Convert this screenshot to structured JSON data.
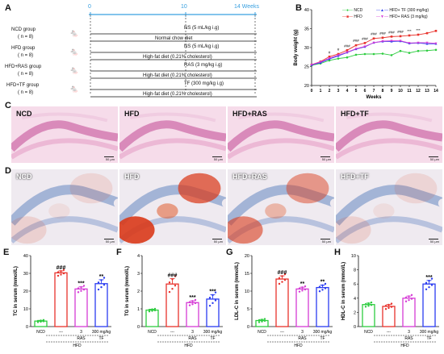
{
  "panels": {
    "A": "A",
    "B": "B",
    "C": "C",
    "D": "D",
    "E": "E",
    "F": "F",
    "G": "G",
    "H": "H"
  },
  "timeline": {
    "ticks": [
      "0",
      "10",
      "14 Weeks"
    ],
    "rows": [
      {
        "group": "NCD group",
        "n": "( n = 8)",
        "top": "NS (5 mL/kg i.g)",
        "bottom": "Normal chow diet"
      },
      {
        "group": "HFD group",
        "n": "( n = 8)",
        "top": "NS (5 mL/kg i.g)",
        "bottom": "High-fat diet (0.21% cholesterol)"
      },
      {
        "group": "HFD+RAS group",
        "n": "( n = 8)",
        "top": "RAS (3 mg/kg i.g)",
        "bottom": "High-fat diet (0.21% cholesterol)"
      },
      {
        "group": "HFD+TF group",
        "n": "( n = 8)",
        "top": "TF (300 mg/kg i.g)",
        "bottom": "High-fat diet (0.21% cholesterol)"
      }
    ]
  },
  "histology": {
    "C": [
      "NCD",
      "HFD",
      "HFD+RAS",
      "HFD+TF"
    ],
    "D": [
      "NCD",
      "HFD",
      "HFD+RAS",
      "HFD+TF"
    ],
    "scale_label": "50 μm"
  },
  "chart_data": [
    {
      "type": "line",
      "id": "B",
      "ylabel": "Body weight (g)",
      "xlabel": "Weeks",
      "x": [
        0,
        1,
        2,
        3,
        4,
        5,
        6,
        7,
        8,
        9,
        10,
        11,
        12,
        13,
        14
      ],
      "ylim": [
        20,
        40
      ],
      "yticks": [
        "40",
        "35",
        "30",
        "25",
        "20"
      ],
      "legend": [
        "NCD",
        "HFD",
        "HFD+ TF (300 mg/kg)",
        "HFD+ RAS (3 mg/kg)"
      ],
      "series": [
        {
          "name": "NCD",
          "color": "#2ecc40",
          "values": [
            25.3,
            25.8,
            26.6,
            27.1,
            27.4,
            28.1,
            28.3,
            28.3,
            28.4,
            28.0,
            29.1,
            28.6,
            29.1,
            29.2,
            29.4
          ]
        },
        {
          "name": "HFD",
          "color": "#e8322c",
          "values": [
            25.5,
            26.3,
            27.6,
            28.3,
            29.3,
            30.6,
            31.2,
            32.4,
            32.6,
            32.9,
            33.0,
            33.2,
            33.4,
            33.8,
            34.4
          ]
        },
        {
          "name": "HFD+ TF (300 mg/kg)",
          "color": "#2b3cf0",
          "values": [
            25.4,
            26.0,
            27.0,
            27.8,
            28.7,
            29.6,
            30.2,
            31.3,
            31.6,
            31.6,
            31.7,
            31.1,
            31.2,
            31.0,
            31.0
          ]
        },
        {
          "name": "HFD+ RAS (3 mg/kg)",
          "color": "#d63cd6",
          "values": [
            25.5,
            26.2,
            27.2,
            28.0,
            28.8,
            29.7,
            30.3,
            31.3,
            31.7,
            31.8,
            31.8,
            31.2,
            31.3,
            31.3,
            31.1
          ]
        }
      ],
      "annotations": [
        "#",
        "#",
        "###",
        "###",
        "###",
        "###",
        "###",
        "###",
        "###",
        "***",
        "***"
      ]
    },
    {
      "type": "bar",
      "id": "E",
      "ylabel": "TC in serum (mmol/L)",
      "ylim": [
        0,
        40
      ],
      "yticks": [
        "40",
        "30",
        "20",
        "10",
        "0"
      ],
      "categories": [
        "NCD",
        "---",
        "3",
        "300 mg/kg"
      ],
      "sub_labels": [
        "",
        "",
        "RAS",
        "TF"
      ],
      "group_label": "HFD",
      "values": [
        3.1,
        30.3,
        21.2,
        24.2
      ],
      "errors": [
        0.4,
        1.1,
        1.2,
        2.2
      ],
      "stars": [
        "",
        "###",
        "***",
        "**"
      ]
    },
    {
      "type": "bar",
      "id": "F",
      "ylabel": "TG in serum (mmol/L)",
      "ylim": [
        0,
        4
      ],
      "yticks": [
        "4",
        "3",
        "2",
        "1",
        "0"
      ],
      "categories": [
        "NCD",
        "---",
        "3",
        "300 mg/kg"
      ],
      "sub_labels": [
        "",
        "",
        "RAS",
        "TF"
      ],
      "group_label": "HFD",
      "values": [
        0.93,
        2.4,
        1.35,
        1.55
      ],
      "errors": [
        0.05,
        0.3,
        0.1,
        0.25
      ],
      "stars": [
        "",
        "###",
        "***",
        "***"
      ]
    },
    {
      "type": "bar",
      "id": "G",
      "ylabel": "LDL-C in serum (mmol/L)",
      "ylim": [
        0,
        20
      ],
      "yticks": [
        "20",
        "15",
        "10",
        "5",
        "0"
      ],
      "categories": [
        "NCD",
        "---",
        "3",
        "300 mg/kg"
      ],
      "sub_labels": [
        "",
        "",
        "RAS",
        "TF"
      ],
      "group_label": "HFD",
      "values": [
        1.7,
        13.4,
        10.6,
        11.0
      ],
      "errors": [
        0.3,
        0.9,
        0.5,
        0.7
      ],
      "stars": [
        "",
        "###",
        "**",
        "**"
      ]
    },
    {
      "type": "bar",
      "id": "H",
      "ylabel": "HDL-C in serum (mmol/L)",
      "ylim": [
        0,
        10
      ],
      "yticks": [
        "10",
        "8",
        "6",
        "4",
        "2",
        "0"
      ],
      "categories": [
        "NCD",
        "---",
        "3",
        "300 mg/kg"
      ],
      "sub_labels": [
        "",
        "",
        "RAS",
        "TF"
      ],
      "group_label": "HFD",
      "values": [
        3.1,
        2.85,
        4.0,
        6.0
      ],
      "errors": [
        0.2,
        0.25,
        0.3,
        0.5
      ],
      "stars": [
        "",
        "",
        "",
        "***"
      ]
    }
  ],
  "colors": {
    "ncd": "#2ecc40",
    "hfd": "#e8322c",
    "ras": "#d63cd6",
    "tf": "#2b3cf0"
  }
}
